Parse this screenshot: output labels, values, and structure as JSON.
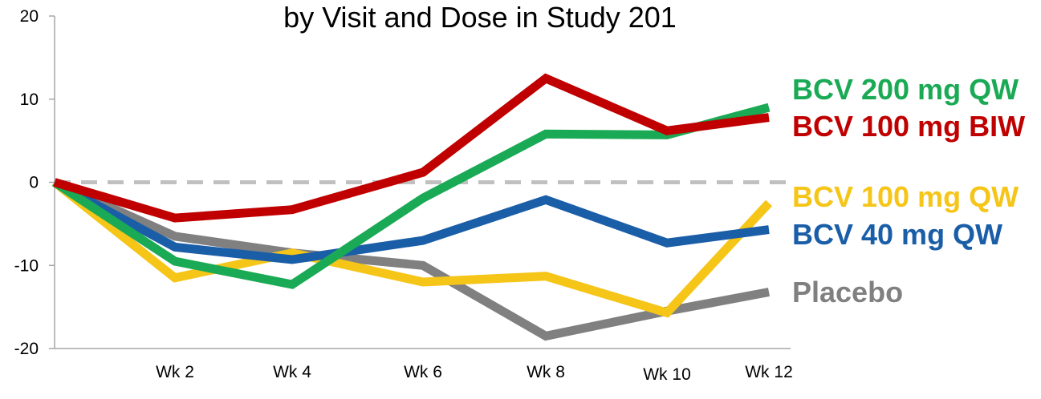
{
  "chart_data": {
    "type": "line",
    "title": "by Visit and Dose in Study 201",
    "x": [
      "",
      "Wk 2",
      "Wk 4",
      "Wk 6",
      "Wk 8",
      "Wk 10",
      "Wk 12"
    ],
    "ylim": [
      -20,
      20
    ],
    "yticks": [
      20,
      10,
      0,
      -10,
      -20
    ],
    "reference_line": {
      "y": 0,
      "style": "dashed",
      "color": "#c0c0c0"
    },
    "grid": false,
    "legend": "right-side inline labels",
    "series": [
      {
        "name": "Placebo",
        "color": "#808080",
        "values": [
          0,
          -6.5,
          -8.5,
          -10,
          -18.5,
          -15.5,
          -13.2
        ]
      },
      {
        "name": "BCV 100 mg QW",
        "color": "#f5c518",
        "values": [
          0,
          -11.5,
          -8.5,
          -12,
          -11.3,
          -15.7,
          -2.5
        ]
      },
      {
        "name": "BCV 40 mg QW",
        "color": "#1a5ea8",
        "values": [
          0,
          -7.8,
          -9.3,
          -7,
          -2.1,
          -7.3,
          -5.7
        ]
      },
      {
        "name": "BCV 200 mg QW",
        "color": "#1aaa55",
        "values": [
          0,
          -9.5,
          -12.3,
          -1.9,
          5.8,
          5.7,
          9
        ]
      },
      {
        "name": "BCV 100 mg BIW",
        "color": "#c00000",
        "values": [
          0,
          -4.3,
          -3.3,
          1.2,
          12.5,
          6.2,
          7.8
        ]
      }
    ]
  }
}
